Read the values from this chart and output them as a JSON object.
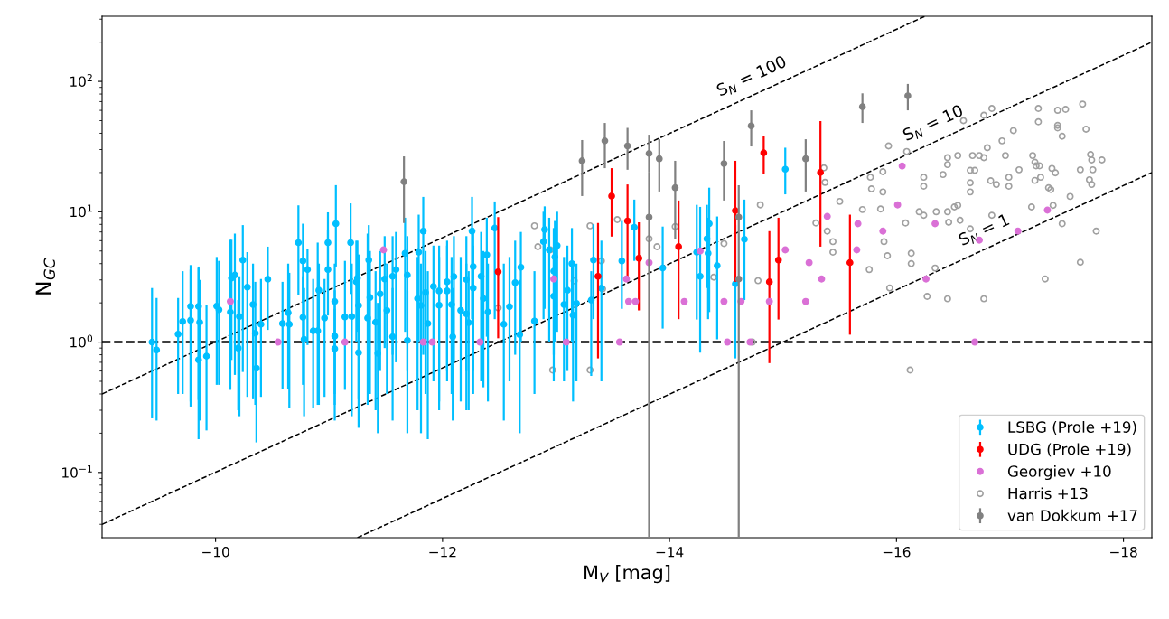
{
  "chart_data": {
    "type": "scatter",
    "xlabel": "M$_{V}$ [mag]",
    "ylabel": "N$_{GC}$",
    "log": "y",
    "xlim": [
      -9.0,
      -18.25
    ],
    "ylim": [
      0.0316,
      316
    ],
    "xticks": [
      {
        "value": -10,
        "label": "−10"
      },
      {
        "value": -12,
        "label": "−12"
      },
      {
        "value": -14,
        "label": "−14"
      },
      {
        "value": -16,
        "label": "−16"
      },
      {
        "value": -18,
        "label": "−18"
      }
    ],
    "yticks": [
      {
        "value": 0.1,
        "label": "10$^{−1}$"
      },
      {
        "value": 1,
        "label": "10$^{0}$"
      },
      {
        "value": 10,
        "label": "10$^{1}$"
      },
      {
        "value": 100,
        "label": "10$^{2}$"
      }
    ],
    "legend": "lower right",
    "grid": false,
    "ref_lines": [
      {
        "axis": "y",
        "value": 1,
        "color": "#000000",
        "line_style": "dashed"
      }
    ],
    "series": [
      {
        "type": "line",
        "name": "S$_{N}$ = 100",
        "color": "#000000",
        "line_style": "dashed",
        "marker": "none",
        "x": [
          -9.0,
          -16.25
        ],
        "values": [
          0.4,
          316
        ]
      },
      {
        "type": "line",
        "name": "S$_{N}$ = 10",
        "color": "#000000",
        "line_style": "dashed",
        "marker": "none",
        "x": [
          -9.0,
          -18.25
        ],
        "values": [
          0.04,
          200
        ]
      },
      {
        "type": "line",
        "name": "S$_{N}$ = 1",
        "color": "#000000",
        "line_style": "dashed",
        "marker": "none",
        "x": [
          -11.25,
          -18.25
        ],
        "values": [
          0.0316,
          20
        ]
      },
      {
        "name": "Harris +13",
        "color": "#a0a0a0",
        "marker": "circle",
        "x": [
          -17.25,
          -17.42,
          -17.49,
          -17.64,
          -17.25,
          -17.42,
          -17.42,
          -17.46,
          -17.67,
          -17.03,
          -16.93,
          -16.8,
          -16.59,
          -16.77,
          -16.84,
          -15.93,
          -16.09,
          -16.45,
          -16.45,
          -16.54,
          -16.67,
          -16.73,
          -16.77,
          -16.96,
          -17.2,
          -17.22,
          -17.23,
          -17.26,
          -17.37,
          -17.4,
          -17.62,
          -17.71,
          -17.72,
          -17.73,
          -17.81,
          -16.41,
          -16.65,
          -16.69,
          -17.08,
          -16.99,
          -16.99,
          -16.88,
          -16.83,
          -16.65,
          -16.65,
          -16.24,
          -16.24,
          -15.88,
          -15.77,
          -15.78,
          -15.88,
          -15.7,
          -15.86,
          -16.2,
          -16.24,
          -16.35,
          -16.45,
          -16.51,
          -16.54,
          -16.08,
          -16.46,
          -16.56,
          -16.65,
          -16.84,
          -15.89,
          -15.92,
          -15.76,
          -16.13,
          -16.13,
          -16.34,
          -15.94,
          -16.27,
          -16.45,
          -16.77,
          -16.12,
          -17.22,
          -17.27,
          -17.34,
          -17.36,
          -17.38,
          -17.53,
          -17.46,
          -17.76,
          -17.62,
          -17.31,
          -17.7,
          -17.72,
          -17.19,
          -12.81,
          -12.84,
          -12.95,
          -13.3,
          -13.54,
          -13.4,
          -13.41,
          -13.16,
          -12.49,
          -12.97,
          -13.3,
          -13.82,
          -13.89,
          -14.05,
          -14.48,
          -14.39,
          -14.78,
          -14.8,
          -14.73,
          -15.5,
          -15.36,
          -15.37,
          -15.29,
          -15.39,
          -15.44,
          -15.44
        ],
        "values": [
          62,
          60,
          61,
          67,
          49,
          46,
          44,
          38,
          43,
          42,
          35,
          31,
          50,
          55,
          62,
          32,
          29,
          26,
          23,
          27,
          27,
          27,
          26,
          27,
          27,
          24,
          22.5,
          22.5,
          21.5,
          19.9,
          21,
          27.5,
          25,
          21,
          25,
          19.3,
          20.8,
          20.8,
          21,
          18.4,
          15.7,
          16.2,
          17.3,
          16.7,
          14.2,
          18.4,
          15.7,
          20.3,
          18.4,
          15,
          14.2,
          10.4,
          10.5,
          10,
          9.4,
          10,
          10,
          10.9,
          11.2,
          8.2,
          8.3,
          8.6,
          7.4,
          9.4,
          5.9,
          4.6,
          3.6,
          4.8,
          4.0,
          3.7,
          2.6,
          2.24,
          2.15,
          2.15,
          0.61,
          17.4,
          18.4,
          15.3,
          14.8,
          11.2,
          13.1,
          8.1,
          7.1,
          4.1,
          3.05,
          17.6,
          16.2,
          10.9,
          7.8,
          5.4,
          5.1,
          7.8,
          8.7,
          4.2,
          2.56,
          2.95,
          1.83,
          0.61,
          0.61,
          6.2,
          5.4,
          7.7,
          5.7,
          3.15,
          2.96,
          11.3,
          1.0,
          12,
          21.7,
          16.8,
          8.2,
          7.1,
          5.9,
          4.9
        ]
      },
      {
        "name": "LSBG (Prole +19)",
        "color": "#00bfff",
        "marker": "circle",
        "x": [
          -9.44,
          -9.48,
          -9.67,
          -9.71,
          -9.78,
          -9.78,
          -9.85,
          -9.86,
          -9.85,
          -9.92,
          -10.01,
          -10.03,
          -10.13,
          -10.14,
          -10.17,
          -10.24,
          -10.28,
          -10.21,
          -10.33,
          -10.35,
          -10.36,
          -10.2,
          -10.4,
          -10.46,
          -10.59,
          -10.64,
          -10.65,
          -10.73,
          -10.77,
          -10.77,
          -10.78,
          -10.81,
          -10.86,
          -10.9,
          -10.91,
          -10.96,
          -10.99,
          -10.99,
          -11.06,
          -11.05,
          -11.05,
          -11.05,
          -11.14,
          -11.19,
          -11.2,
          -11.24,
          -11.26,
          -11.26,
          -11.34,
          -11.35,
          -11.25,
          -11.36,
          -11.41,
          -11.43,
          -11.45,
          -11.49,
          -11.51,
          -11.56,
          -11.56,
          -11.59,
          -11.67,
          -11.69,
          -11.69,
          -11.78,
          -11.79,
          -11.83,
          -11.81,
          -11.85,
          -11.87,
          -11.92,
          -11.97,
          -11.97,
          -12.04,
          -12.04,
          -12.08,
          -12.1,
          -12.09,
          -12.16,
          -12.21,
          -12.21,
          -12.26,
          -12.27,
          -12.27,
          -12.23,
          -12.34,
          -12.36,
          -12.39,
          -12.4,
          -12.46,
          -12.54,
          -12.59,
          -12.64,
          -12.69,
          -12.68,
          -12.81,
          -12.9,
          -12.89,
          -12.94,
          -12.99,
          -13.01,
          -12.98,
          -12.98,
          -13.07,
          -13.1,
          -13.14,
          -13.15,
          -13.18,
          -13.31,
          -13.33,
          -13.4,
          -13.58,
          -13.69,
          -13.94,
          -14.27,
          -14.24,
          -14.33,
          -14.35,
          -14.34,
          -14.42,
          -14.58,
          -14.66,
          -15.02
        ],
        "values": [
          1.0,
          0.87,
          1.15,
          1.44,
          1.88,
          1.47,
          1.88,
          1.42,
          0.73,
          0.78,
          1.89,
          1.77,
          1.7,
          3.1,
          3.27,
          4.26,
          2.64,
          1.57,
          1.94,
          1.17,
          0.63,
          0.9,
          1.37,
          3.04,
          1.39,
          1.68,
          1.37,
          5.8,
          4.2,
          1.55,
          1.05,
          3.6,
          1.22,
          1.22,
          2.5,
          1.53,
          5.8,
          3.6,
          8.1,
          1.11,
          2.05,
          0.89,
          1.56,
          5.8,
          1.57,
          2.9,
          0.83,
          1.91,
          1.53,
          4.26,
          3.1,
          2.2,
          1.42,
          0.82,
          2.34,
          3.05,
          1.75,
          1.1,
          3.2,
          3.6,
          4.8,
          3.27,
          1.03,
          2.16,
          4.9,
          7.1,
          1.91,
          2.4,
          1.39,
          2.67,
          2.47,
          1.92,
          2.9,
          2.47,
          1.94,
          3.18,
          1.1,
          1.75,
          1.65,
          3.02,
          7.1,
          3.8,
          2.6,
          1.41,
          3.2,
          2.16,
          4.67,
          1.7,
          7.5,
          1.37,
          1.87,
          2.86,
          3.75,
          1.14,
          1.45,
          7.3,
          5.9,
          5.1,
          4.5,
          5.5,
          3.5,
          2.25,
          1.94,
          2.5,
          4.0,
          1.61,
          1.98,
          2.1,
          4.26,
          2.6,
          4.2,
          7.6,
          3.7,
          3.2,
          4.9,
          6.2,
          8.1,
          4.8,
          3.86,
          2.8,
          6.15,
          21.2
        ],
        "errors": [
          [
            0.26,
            2.6
          ],
          [
            0.25,
            2.18
          ],
          [
            0.4,
            2.18
          ],
          [
            0.4,
            3.5
          ],
          [
            0.32,
            3.9
          ],
          [
            0.35,
            3.6
          ],
          [
            0.36,
            3.7
          ],
          [
            0.25,
            3.0
          ],
          [
            0.18,
            3.8
          ],
          [
            0.21,
            1.92
          ],
          [
            0.47,
            4.5
          ],
          [
            0.47,
            4.2
          ],
          [
            0.43,
            6.1
          ],
          [
            0.73,
            6.1
          ],
          [
            0.56,
            6.8
          ],
          [
            0.59,
            7.9
          ],
          [
            0.38,
            4.9
          ],
          [
            0.27,
            3.2
          ],
          [
            0.37,
            4.0
          ],
          [
            0.33,
            2.9
          ],
          [
            0.17,
            1.31
          ],
          [
            0.3,
            2.1
          ],
          [
            0.38,
            3.05
          ],
          [
            1.24,
            5.4
          ],
          [
            0.44,
            2.9
          ],
          [
            0.44,
            4.0
          ],
          [
            0.31,
            3.4
          ],
          [
            2.28,
            11.2
          ],
          [
            2.0,
            8.1
          ],
          [
            0.47,
            3.2
          ],
          [
            0.27,
            2.6
          ],
          [
            0.95,
            5.2
          ],
          [
            0.31,
            3.05
          ],
          [
            0.33,
            5.8
          ],
          [
            0.33,
            4.0
          ],
          [
            0.38,
            3.05
          ],
          [
            2.5,
            9.9
          ],
          [
            1.6,
            7.2
          ],
          [
            3.8,
            16
          ],
          [
            0.25,
            2.5
          ],
          [
            0.4,
            4.0
          ],
          [
            0.33,
            1.8
          ],
          [
            0.43,
            4.2
          ],
          [
            2.34,
            11.6
          ],
          [
            0.27,
            4.0
          ],
          [
            1.0,
            6.0
          ],
          [
            0.22,
            2.0
          ],
          [
            0.37,
            4.7
          ],
          [
            0.33,
            6.8
          ],
          [
            0.41,
            7.9
          ],
          [
            1.2,
            6.0
          ],
          [
            0.4,
            5.0
          ],
          [
            0.3,
            3.5
          ],
          [
            0.2,
            2.0
          ],
          [
            0.6,
            5.0
          ],
          [
            0.9,
            6.5
          ],
          [
            0.4,
            4.0
          ],
          [
            0.25,
            2.6
          ],
          [
            0.8,
            6.5
          ],
          [
            0.7,
            7.0
          ],
          [
            1.2,
            9.0
          ],
          [
            0.6,
            6.5
          ],
          [
            0.2,
            2.5
          ],
          [
            0.3,
            4.5
          ],
          [
            1.0,
            9.5
          ],
          [
            0.8,
            13
          ],
          [
            0.2,
            4.0
          ],
          [
            0.4,
            5.0
          ],
          [
            0.18,
            3.5
          ],
          [
            0.5,
            5.5
          ],
          [
            0.35,
            5.5
          ],
          [
            0.3,
            4.5
          ],
          [
            0.6,
            6.0
          ],
          [
            0.5,
            5.5
          ],
          [
            0.4,
            4.5
          ],
          [
            0.7,
            6.5
          ],
          [
            0.25,
            2.6
          ],
          [
            0.35,
            4.5
          ],
          [
            0.3,
            4.0
          ],
          [
            0.6,
            6.5
          ],
          [
            1.5,
            13
          ],
          [
            0.6,
            7.5
          ],
          [
            0.4,
            5.5
          ],
          [
            0.3,
            3.5
          ],
          [
            0.5,
            7.0
          ],
          [
            0.45,
            5.0
          ],
          [
            1.1,
            9.0
          ],
          [
            0.35,
            4.0
          ],
          [
            1.5,
            12
          ],
          [
            0.25,
            4.0
          ],
          [
            0.5,
            4.5
          ],
          [
            0.8,
            6.0
          ],
          [
            1.0,
            7.0
          ],
          [
            0.2,
            3.0
          ],
          [
            0.4,
            3.5
          ],
          [
            1.8,
            11
          ],
          [
            1.5,
            10
          ],
          [
            1.0,
            9.0
          ],
          [
            1.0,
            8.5
          ],
          [
            1.2,
            10
          ],
          [
            0.8,
            7.5
          ],
          [
            0.5,
            4.5
          ],
          [
            0.5,
            4.5
          ],
          [
            0.6,
            5.5
          ],
          [
            1.0,
            7.5
          ],
          [
            0.35,
            4.0
          ],
          [
            0.5,
            4.0
          ],
          [
            0.55,
            3.5
          ],
          [
            1.5,
            8.0
          ],
          [
            0.5,
            6.0
          ],
          [
            1.8,
            8.5
          ],
          [
            4.2,
            12.4
          ],
          [
            1.27,
            7.7
          ],
          [
            0.83,
            10.9
          ],
          [
            1.49,
            11.3
          ],
          [
            2.6,
            11.3
          ],
          [
            1.7,
            15.3
          ],
          [
            1.5,
            9.0
          ],
          [
            1.05,
            9.2
          ],
          [
            0.75,
            7.9
          ],
          [
            2.1,
            12.4
          ],
          [
            13.6,
            31
          ]
        ]
      },
      {
        "name": "UDG (Prole +19)",
        "color": "#ff0000",
        "marker": "circle",
        "x": [
          -12.49,
          -13.37,
          -13.49,
          -13.63,
          -13.73,
          -14.08,
          -14.58,
          -14.83,
          -14.88,
          -14.96,
          -15.33,
          -15.59
        ],
        "values": [
          3.46,
          3.2,
          13.2,
          8.5,
          4.4,
          5.4,
          10.2,
          28.3,
          2.9,
          4.26,
          20,
          4.07
        ],
        "errors": [
          [
            1.07,
            9.1
          ],
          [
            0.75,
            8.2
          ],
          [
            6.45,
            21.6
          ],
          [
            3.05,
            16.2
          ],
          [
            1.75,
            8.3
          ],
          [
            1.5,
            12.2
          ],
          [
            2.9,
            24.6
          ],
          [
            19.4,
            37.8
          ],
          [
            0.69,
            7.1
          ],
          [
            1.49,
            9.0
          ],
          [
            5.4,
            49.6
          ],
          [
            1.14,
            9.5
          ]
        ]
      },
      {
        "name": "Georgiev +10",
        "color": "#da70d6",
        "marker": "circle",
        "x": [
          -10.13,
          -10.55,
          -11.14,
          -11.48,
          -11.83,
          -11.91,
          -12.33,
          -12.98,
          -13.09,
          -13.56,
          -13.62,
          -13.64,
          -13.7,
          -13.82,
          -14.13,
          -14.27,
          -14.48,
          -14.51,
          -14.63,
          -14.71,
          -14.88,
          -15.02,
          -15.2,
          -15.23,
          -15.34,
          -15.39,
          -15.65,
          -15.66,
          -16.05,
          -16.01,
          -15.88,
          -16.34,
          -16.26,
          -16.73,
          -17.07,
          -17.33,
          -16.69
        ],
        "values": [
          2.05,
          1,
          1,
          5.1,
          1,
          1,
          1,
          3.05,
          1,
          1,
          3.05,
          2.05,
          2.05,
          4.07,
          2.05,
          5.0,
          2.05,
          1,
          2.05,
          1,
          2.05,
          5.1,
          2.05,
          4.07,
          3.05,
          9.2,
          5.1,
          8.1,
          22.4,
          11.3,
          7.1,
          8.1,
          3.05,
          6.05,
          7.1,
          10.3,
          1
        ]
      },
      {
        "name": "van Dokkum +17",
        "color": "#808080",
        "marker": "circle",
        "x": [
          -11.66,
          -13.23,
          -13.43,
          -13.63,
          -13.72,
          -13.82,
          -13.82,
          -13.91,
          -14.05,
          -14.48,
          -14.61,
          -14.61,
          -14.72,
          -15.2,
          -15.7,
          -16.1
        ],
        "values": [
          17,
          24.6,
          35,
          32,
          null,
          28,
          9.1,
          25.5,
          15.3,
          23.4,
          9.1,
          3.05,
          45.6,
          25.5,
          63.9,
          77.5
        ],
        "errors": [
          [
            8.2,
            26.6
          ],
          [
            13.2,
            35.5
          ],
          [
            21.6,
            48
          ],
          [
            21,
            44
          ],
          null,
          [
            20,
            39
          ],
          [
            0.0316,
            20
          ],
          [
            14.3,
            36
          ],
          [
            6.2,
            24.6
          ],
          [
            12.2,
            34.9
          ],
          null,
          [
            0.0316,
            16
          ],
          [
            31.7,
            60
          ],
          [
            14.3,
            36
          ],
          [
            48,
            81
          ],
          [
            60,
            95.6
          ]
        ]
      }
    ]
  }
}
